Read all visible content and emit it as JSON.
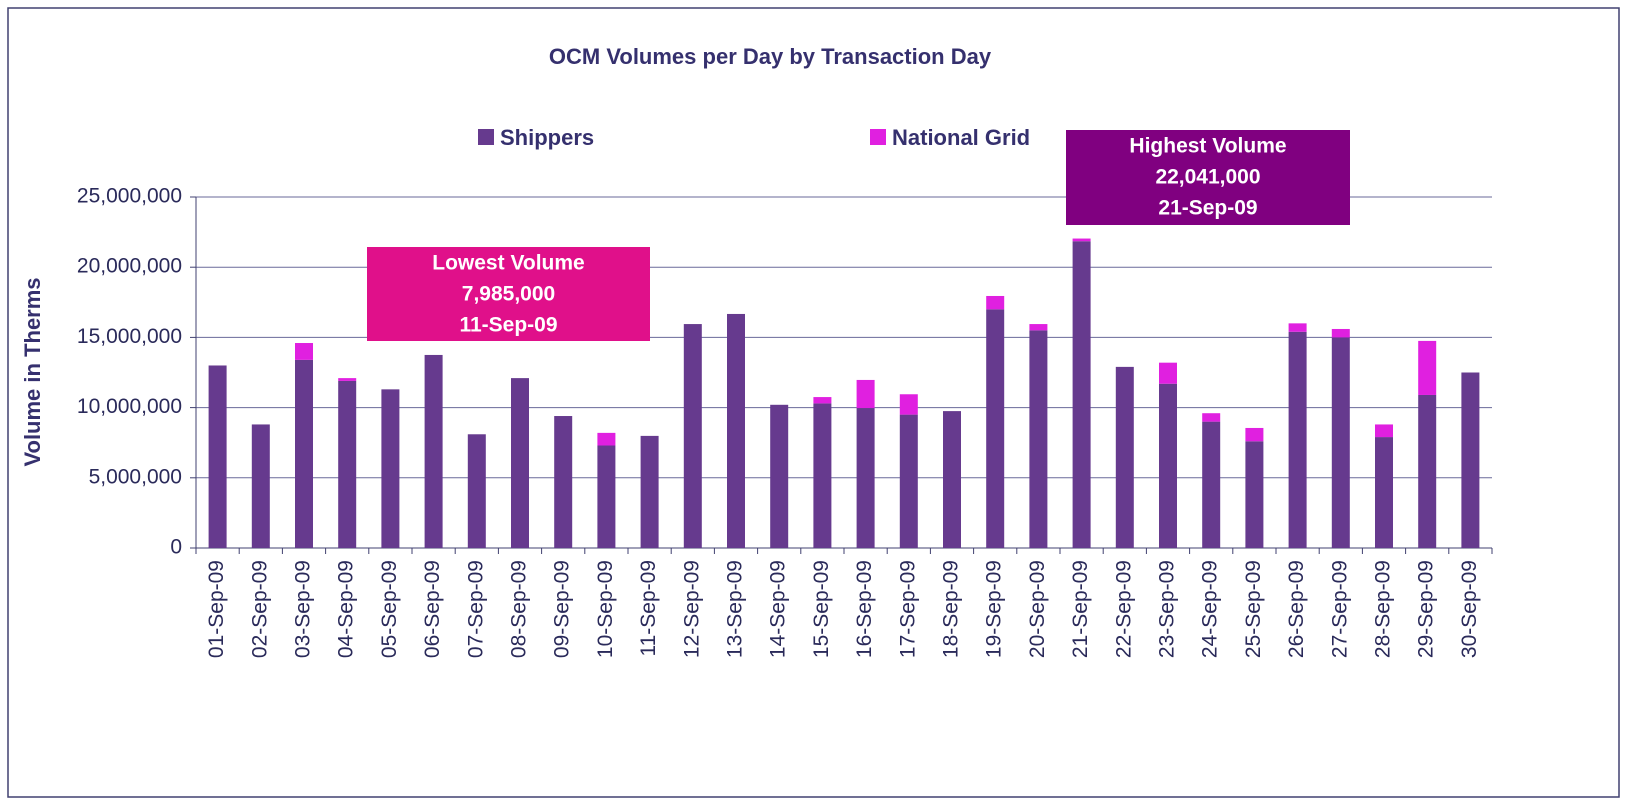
{
  "chart_data": {
    "type": "stacked_bar",
    "title": "OCM Volumes per Day by Transaction Day",
    "y_label": "Volume in Therms",
    "categories": [
      "01-Sep-09",
      "02-Sep-09",
      "03-Sep-09",
      "04-Sep-09",
      "05-Sep-09",
      "06-Sep-09",
      "07-Sep-09",
      "08-Sep-09",
      "09-Sep-09",
      "10-Sep-09",
      "11-Sep-09",
      "12-Sep-09",
      "13-Sep-09",
      "14-Sep-09",
      "15-Sep-09",
      "16-Sep-09",
      "17-Sep-09",
      "18-Sep-09",
      "19-Sep-09",
      "20-Sep-09",
      "21-Sep-09",
      "22-Sep-09",
      "23-Sep-09",
      "24-Sep-09",
      "25-Sep-09",
      "26-Sep-09",
      "27-Sep-09",
      "28-Sep-09",
      "29-Sep-09",
      "30-Sep-09"
    ],
    "series": [
      {
        "name": "Shippers",
        "color": "#663a8e",
        "values": [
          13000000,
          8800000,
          13400000,
          11900000,
          11300000,
          13750000,
          8100000,
          12100000,
          9400000,
          7300000,
          7985000,
          15950000,
          16670000,
          10200000,
          10300000,
          9970000,
          9500000,
          9750000,
          17000000,
          15500000,
          21850000,
          12900000,
          11700000,
          9000000,
          7600000,
          15400000,
          15000000,
          7900000,
          10900000,
          12500000
        ]
      },
      {
        "name": "National Grid",
        "color": "#e020e0",
        "values": [
          0,
          0,
          1200000,
          200000,
          0,
          0,
          0,
          0,
          0,
          900000,
          0,
          0,
          0,
          0,
          450000,
          2000000,
          1450000,
          0,
          950000,
          450000,
          191000,
          0,
          1500000,
          600000,
          950000,
          600000,
          600000,
          900000,
          3850000,
          0
        ]
      }
    ],
    "ylim": [
      0,
      25000000
    ],
    "yticks": [
      0,
      {
        "value": 5000000,
        "label": "5,000,000"
      },
      {
        "value": 10000000,
        "label": "10,000,000"
      },
      {
        "value": 15000000,
        "label": "15,000,000"
      },
      {
        "value": 20000000,
        "label": "20,000,000"
      },
      {
        "value": 25000000,
        "label": "25,000,000"
      }
    ],
    "grid": true,
    "annotations": [
      {
        "lines": [
          "Lowest Volume",
          "7,985,000",
          "11-Sep-09"
        ],
        "color": "#e0108a"
      },
      {
        "lines": [
          "Highest Volume",
          "22,041,000",
          "21-Sep-09"
        ],
        "color": "#800080"
      }
    ]
  }
}
